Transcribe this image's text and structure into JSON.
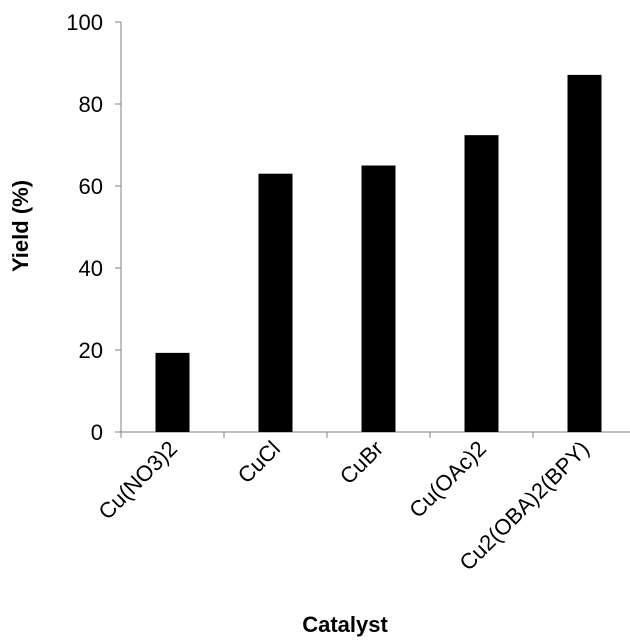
{
  "chart_data": {
    "type": "bar",
    "title": "",
    "xlabel": "Catalyst",
    "ylabel": "Yield (%)",
    "categories": [
      "Cu(NO3)2",
      "CuCl",
      "CuBr",
      "Cu(OAc)2",
      "Cu2(OBA)2(BPY)"
    ],
    "values": [
      19.3,
      63,
      65,
      72.4,
      87.1
    ],
    "ylim": [
      0,
      100
    ],
    "yticks": [
      0,
      20,
      40,
      60,
      80,
      100
    ],
    "grid": false,
    "legend": "none",
    "bar_color": "#000000"
  }
}
